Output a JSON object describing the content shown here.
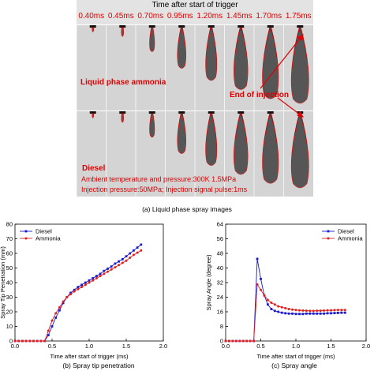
{
  "figure": {
    "images": {
      "banner_title": "Time after start of trigger",
      "times": [
        "0.40ms",
        "0.45ms",
        "0.70ms",
        "0.95ms",
        "1.20ms",
        "1.45ms",
        "1.70ms",
        "1.75ms"
      ],
      "ammonia_label": "Liquid phase ammonia",
      "diesel_label": "Diesel",
      "end_label": "End of injection",
      "conditions_line1": "Ambient temperature and pressure:300K 1.5MPa",
      "conditions_line2": "Injection pressure:50MPa; Injection signal pulse:1ms",
      "caption": "(a) Liquid phase spray images"
    },
    "captions": {
      "b": "(b) Spray tip penetration",
      "c": "(c) Spray angle"
    }
  },
  "chart_data": [
    {
      "type": "line",
      "title": "",
      "xlabel": "Time after start of trigger (ms)",
      "ylabel": "Spray Tip Penetration (mm)",
      "xlim": [
        0.0,
        2.0
      ],
      "ylim": [
        0,
        80
      ],
      "xticks": [
        "0.0",
        "0.5",
        "1.0",
        "1.5",
        "2.0"
      ],
      "yticks": [
        "0",
        "10",
        "20",
        "30",
        "40",
        "50",
        "60",
        "70",
        "80"
      ],
      "legend_position": "top-left",
      "series": [
        {
          "name": "Diesel",
          "color": "#1a1acc",
          "marker": "square",
          "x": [
            0.0,
            0.05,
            0.1,
            0.15,
            0.2,
            0.25,
            0.3,
            0.35,
            0.4,
            0.45,
            0.5,
            0.55,
            0.6,
            0.65,
            0.7,
            0.75,
            0.8,
            0.85,
            0.9,
            0.95,
            1.0,
            1.05,
            1.1,
            1.15,
            1.2,
            1.25,
            1.3,
            1.35,
            1.4,
            1.45,
            1.5,
            1.55,
            1.6,
            1.65,
            1.7
          ],
          "values": [
            0,
            0,
            0,
            0,
            0,
            0,
            0,
            0,
            0,
            4,
            10,
            16,
            21,
            26,
            30,
            33,
            35,
            37,
            38.5,
            40,
            41.5,
            43,
            44.5,
            46,
            48,
            49.5,
            51,
            53,
            54.5,
            56,
            58,
            60,
            62,
            64,
            66
          ]
        },
        {
          "name": "Ammonia",
          "color": "#e02020",
          "marker": "circle",
          "x": [
            0.0,
            0.05,
            0.1,
            0.15,
            0.2,
            0.25,
            0.3,
            0.35,
            0.4,
            0.45,
            0.5,
            0.55,
            0.6,
            0.65,
            0.7,
            0.75,
            0.8,
            0.85,
            0.9,
            0.95,
            1.0,
            1.05,
            1.1,
            1.15,
            1.2,
            1.25,
            1.3,
            1.35,
            1.4,
            1.45,
            1.5,
            1.55,
            1.6,
            1.65,
            1.7
          ],
          "values": [
            0,
            0,
            0,
            0,
            0,
            0,
            0,
            0,
            0,
            7,
            14,
            19,
            23,
            27,
            30,
            32,
            34,
            35.5,
            37,
            38.5,
            40,
            41.5,
            43,
            44.5,
            46,
            47.5,
            49,
            50.5,
            52,
            53.5,
            55,
            57,
            59,
            60.5,
            62
          ]
        }
      ]
    },
    {
      "type": "line",
      "title": "",
      "xlabel": "Time after start of trigger (ms)",
      "ylabel": "Spray Angle (degree)",
      "xlim": [
        0.0,
        2.0
      ],
      "ylim": [
        0,
        64
      ],
      "xticks": [
        "0.0",
        "0.5",
        "1.0",
        "1.5",
        "2.0"
      ],
      "yticks": [
        "0",
        "8",
        "16",
        "24",
        "32",
        "40",
        "48",
        "56",
        "64"
      ],
      "legend_position": "top-right",
      "series": [
        {
          "name": "Diesel",
          "color": "#1a1acc",
          "marker": "square",
          "x": [
            0.0,
            0.05,
            0.1,
            0.15,
            0.2,
            0.25,
            0.3,
            0.35,
            0.4,
            0.45,
            0.5,
            0.55,
            0.6,
            0.65,
            0.7,
            0.75,
            0.8,
            0.85,
            0.9,
            0.95,
            1.0,
            1.05,
            1.1,
            1.15,
            1.2,
            1.25,
            1.3,
            1.35,
            1.4,
            1.45,
            1.5,
            1.55,
            1.6,
            1.65,
            1.7
          ],
          "values": [
            0,
            0,
            0,
            0,
            0,
            0,
            0,
            0,
            0,
            45,
            34,
            25,
            20,
            17.5,
            16.5,
            16,
            15.5,
            15.2,
            15,
            15,
            14.8,
            14.8,
            14.8,
            15,
            15,
            15,
            15,
            15,
            15,
            15.2,
            15.2,
            15.3,
            15.4,
            15.5,
            15.5
          ]
        },
        {
          "name": "Ammonia",
          "color": "#e02020",
          "marker": "circle",
          "x": [
            0.0,
            0.05,
            0.1,
            0.15,
            0.2,
            0.25,
            0.3,
            0.35,
            0.4,
            0.45,
            0.5,
            0.55,
            0.6,
            0.65,
            0.7,
            0.75,
            0.8,
            0.85,
            0.9,
            0.95,
            1.0,
            1.05,
            1.1,
            1.15,
            1.2,
            1.25,
            1.3,
            1.35,
            1.4,
            1.45,
            1.5,
            1.55,
            1.6,
            1.65,
            1.7
          ],
          "values": [
            0,
            0,
            0,
            0,
            0,
            0,
            0,
            0,
            0,
            31,
            28,
            25,
            22.5,
            21,
            20,
            19,
            18.5,
            18,
            17.5,
            17.2,
            17,
            16.8,
            16.7,
            16.6,
            16.5,
            16.5,
            16.6,
            16.6,
            16.7,
            16.8,
            16.8,
            16.9,
            17,
            17,
            17
          ]
        }
      ]
    }
  ]
}
